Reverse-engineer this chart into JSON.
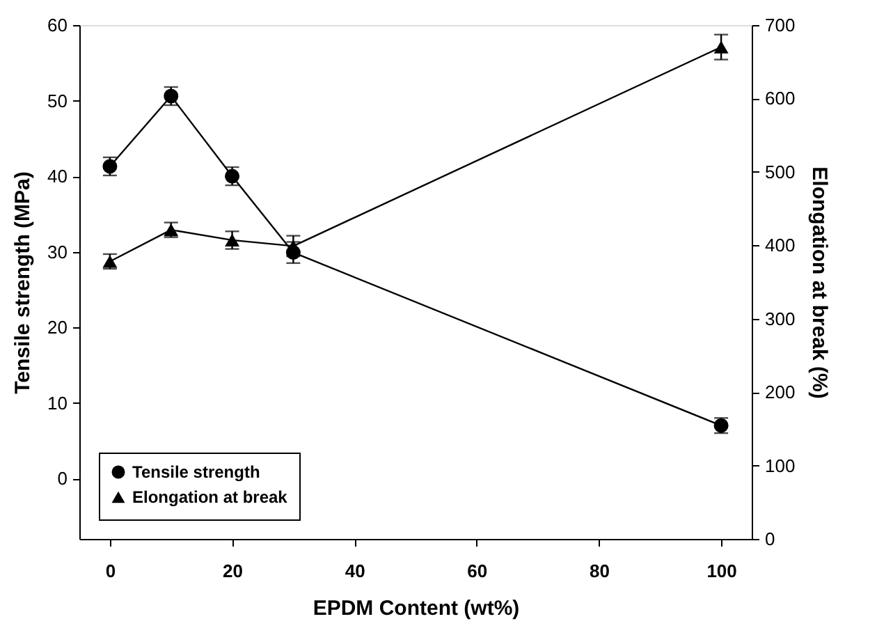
{
  "chart_data": {
    "type": "line",
    "xlabel": "EPDM Content (wt%)",
    "ylabel": "Tensile strength (MPa)",
    "y2label": "Elongation at break (%)",
    "x": [
      0,
      10,
      20,
      30,
      100
    ],
    "xlim": [
      -5,
      105
    ],
    "xticks": [
      0,
      20,
      40,
      60,
      80,
      100
    ],
    "ylim": [
      -8,
      60
    ],
    "yticks": [
      0,
      10,
      20,
      30,
      40,
      50,
      60
    ],
    "y2lim": [
      0,
      700
    ],
    "y2ticks": [
      0,
      100,
      200,
      300,
      400,
      500,
      600,
      700
    ],
    "series": [
      {
        "name": "Tensile strength",
        "color": "#000000",
        "marker": "circle",
        "values": [
          41.3,
          50.6,
          40.0,
          29.9,
          7.0
        ],
        "errors": [
          1.2,
          1.2,
          1.2,
          1.4,
          1.0
        ]
      },
      {
        "name": "Elongation at break",
        "color": "#000000",
        "marker": "triangle",
        "axis": "y2",
        "values": [
          378,
          421,
          407,
          399,
          670
        ],
        "errors": [
          10,
          10,
          12,
          14,
          17
        ]
      }
    ],
    "legend": "bottom left",
    "grid": false,
    "line_style": "solid"
  }
}
